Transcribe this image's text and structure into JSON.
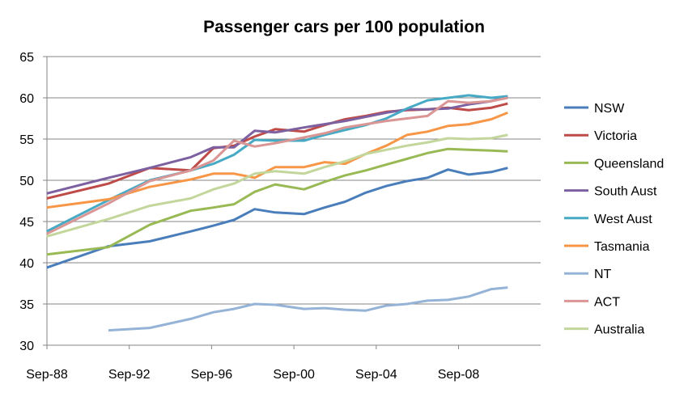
{
  "chart_data": {
    "type": "line",
    "title": "Passenger cars per 100 population",
    "xlabel": "",
    "ylabel": "",
    "ylim": [
      30,
      65
    ],
    "yticks": [
      30,
      35,
      40,
      45,
      50,
      55,
      60,
      65
    ],
    "xlim": [
      1988.71,
      2012.7
    ],
    "xticks": [
      {
        "label": "Sep-88",
        "value": 1988.71
      },
      {
        "label": "Sep-92",
        "value": 1992.71
      },
      {
        "label": "Sep-96",
        "value": 1996.71
      },
      {
        "label": "Sep-00",
        "value": 2000.71
      },
      {
        "label": "Sep-04",
        "value": 2004.71
      },
      {
        "label": "Sep-08",
        "value": 2008.71
      }
    ],
    "grid": "horizontal",
    "legend_position": "right",
    "x": [
      1988.7,
      1991.7,
      1993.7,
      1995.7,
      1996.8,
      1997.8,
      1998.8,
      1999.8,
      2001.2,
      2002.2,
      2003.2,
      2004.2,
      2005.2,
      2006.2,
      2007.2,
      2008.2,
      2009.2,
      2010.3,
      2011.1
    ],
    "series": [
      {
        "name": "NSW",
        "color": "#4a7ebb",
        "values": [
          39.4,
          42.0,
          42.6,
          43.8,
          44.5,
          45.2,
          46.5,
          46.1,
          45.9,
          46.7,
          47.4,
          48.5,
          49.3,
          49.9,
          50.3,
          51.3,
          50.7,
          51.0,
          51.5
        ]
      },
      {
        "name": "Victoria",
        "color": "#be4b48",
        "values": [
          47.8,
          49.6,
          51.5,
          51.2,
          53.9,
          54.2,
          55.3,
          56.2,
          55.9,
          56.7,
          57.4,
          57.8,
          58.3,
          58.5,
          58.6,
          58.8,
          58.5,
          58.8,
          59.3
        ]
      },
      {
        "name": "Queensland",
        "color": "#98b954",
        "values": [
          41.0,
          41.9,
          44.6,
          46.3,
          46.7,
          47.1,
          48.6,
          49.5,
          48.9,
          49.8,
          50.6,
          51.2,
          51.9,
          52.6,
          53.3,
          53.8,
          53.7,
          53.6,
          53.5
        ]
      },
      {
        "name": "South Aust",
        "color": "#7d60a0",
        "values": [
          48.4,
          50.3,
          51.5,
          52.8,
          54.0,
          54.0,
          56.0,
          55.8,
          56.4,
          56.8,
          57.2,
          57.7,
          58.2,
          58.6,
          58.6,
          58.7,
          59.2,
          59.6,
          60.2
        ]
      },
      {
        "name": "West Aust",
        "color": "#46aac5",
        "values": [
          43.8,
          47.6,
          50.0,
          51.2,
          52.0,
          53.1,
          54.9,
          54.8,
          54.8,
          55.5,
          56.1,
          56.7,
          57.5,
          58.7,
          59.7,
          60.0,
          60.3,
          60.0,
          60.2
        ]
      },
      {
        "name": "Tasmania",
        "color": "#f79646",
        "values": [
          46.7,
          47.7,
          49.2,
          50.1,
          50.8,
          50.8,
          50.3,
          51.6,
          51.6,
          52.2,
          52.0,
          53.2,
          54.2,
          55.5,
          55.9,
          56.6,
          56.8,
          57.4,
          58.2
        ]
      },
      {
        "name": "NT",
        "color": "#95b3d7",
        "values": [
          null,
          31.8,
          32.1,
          33.2,
          34.0,
          34.4,
          35.0,
          34.9,
          34.4,
          34.5,
          34.3,
          34.2,
          34.8,
          35.0,
          35.4,
          35.5,
          35.9,
          36.8,
          37.0
        ]
      },
      {
        "name": "ACT",
        "color": "#d99694",
        "values": [
          43.5,
          47.2,
          49.9,
          51.2,
          52.4,
          54.8,
          54.1,
          54.5,
          55.2,
          55.7,
          56.4,
          56.8,
          57.2,
          57.5,
          57.8,
          59.6,
          59.4,
          59.6,
          60.0
        ]
      },
      {
        "name": "Australia",
        "color": "#c3d69b",
        "values": [
          43.2,
          45.3,
          46.9,
          47.8,
          48.9,
          49.6,
          50.8,
          51.1,
          50.8,
          51.6,
          52.3,
          53.2,
          53.7,
          54.2,
          54.6,
          55.1,
          55.0,
          55.1,
          55.5
        ]
      }
    ]
  }
}
